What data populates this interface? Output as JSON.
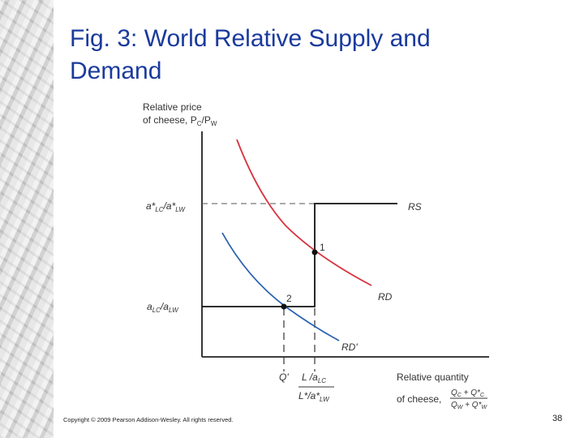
{
  "slide": {
    "title_line1": "Fig. 3:  World Relative Supply and",
    "title_line2": "Demand",
    "copyright": "Copyright © 2009 Pearson Addison-Wesley. All rights reserved.",
    "page_number": "38"
  },
  "diagram": {
    "y_axis_label_line1": "Relative price",
    "y_axis_label_line2": "of cheese, P",
    "y_axis_label_line2_sub1": "C",
    "y_axis_label_line2_mid": "/P",
    "y_axis_label_line2_sub2": "W",
    "x_axis_label_line1": "Relative quantity",
    "x_axis_label_line2": "of cheese,",
    "x_frac_numerator": "Q",
    "x_frac_numerator_sub1": "C",
    "x_frac_numerator_plus": " + Q*",
    "x_frac_numerator_sub2": "C",
    "x_frac_denominator": "Q",
    "x_frac_denominator_sub1": "W",
    "x_frac_denominator_plus": " + Q*",
    "x_frac_denominator_sub2": "W",
    "upper_price_label": "a*",
    "upper_price_sub1": "LC",
    "upper_price_mid": "/a*",
    "upper_price_sub2": "LW",
    "lower_price_label": "a",
    "lower_price_sub1": "LC",
    "lower_price_mid": "/a",
    "lower_price_sub2": "LW",
    "q_prime_label": "Q'",
    "q_top": "L /a",
    "q_top_sub": "LC",
    "q_bottom": "L*/a*",
    "q_bottom_sub": "LW",
    "rs_label": "RS",
    "rd_label": "RD",
    "rd_prime_label": "RD'",
    "point1_label": "1",
    "point2_label": "2",
    "rd_color": "#d8323f",
    "rd_prime_color": "#2a62b0",
    "rs_color": "#111111"
  }
}
